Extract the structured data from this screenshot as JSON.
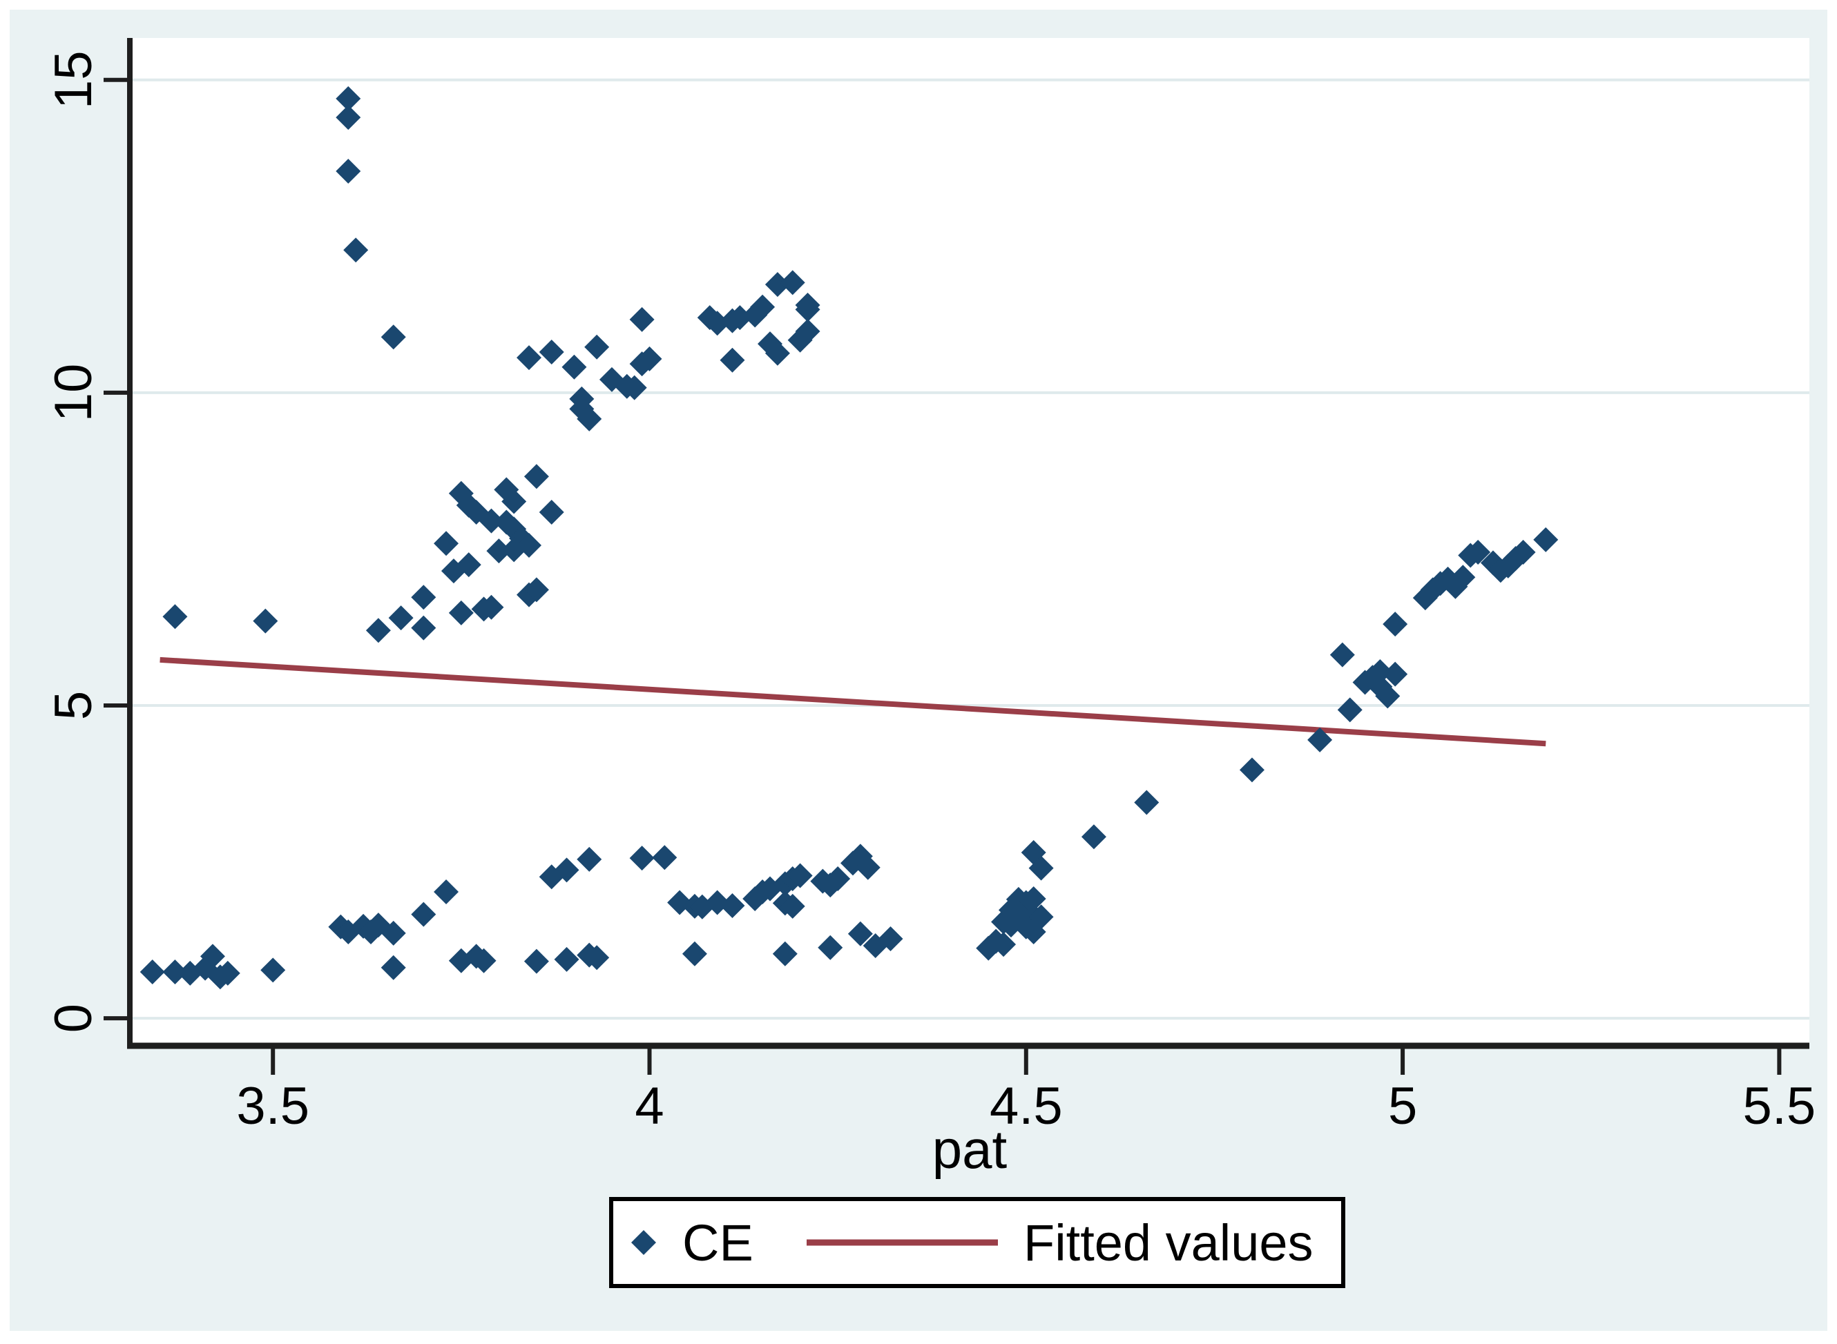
{
  "chart_data": {
    "type": "scatter",
    "title": "",
    "xlabel": "pat",
    "ylabel": "",
    "xlim": [
      3.31,
      5.54
    ],
    "ylim": [
      -0.44,
      15.67
    ],
    "x_tick_values": [
      3.5,
      4,
      4.5,
      5,
      5.5
    ],
    "x_tick_labels": [
      "3.5",
      "4",
      "4.5",
      "5",
      "5.5"
    ],
    "y_tick_values": [
      0,
      5,
      10,
      15
    ],
    "y_tick_labels": [
      "0",
      "5",
      "10",
      "15"
    ],
    "grid": "horizontal",
    "legend": {
      "position": "bottom-center",
      "entries": [
        {
          "label": "CE",
          "marker": "diamond",
          "color": "#1a476f"
        },
        {
          "label": "Fitted values",
          "marker": "line",
          "color": "#9a3e48"
        }
      ]
    },
    "series": [
      {
        "name": "CE",
        "type": "scatter",
        "marker": "diamond",
        "color": "#1a476f",
        "points": [
          [
            3.34,
            0.74
          ],
          [
            3.37,
            0.74
          ],
          [
            3.39,
            0.72
          ],
          [
            3.41,
            0.8
          ],
          [
            3.42,
            0.99
          ],
          [
            3.43,
            0.66
          ],
          [
            3.44,
            0.72
          ],
          [
            3.5,
            0.77
          ],
          [
            3.37,
            6.42
          ],
          [
            3.49,
            6.35
          ],
          [
            3.59,
            1.46
          ],
          [
            3.6,
            1.38
          ],
          [
            3.62,
            1.47
          ],
          [
            3.63,
            1.38
          ],
          [
            3.64,
            1.49
          ],
          [
            3.66,
            1.36
          ],
          [
            3.66,
            0.81
          ],
          [
            3.7,
            1.66
          ],
          [
            3.73,
            2.02
          ],
          [
            3.75,
            0.92
          ],
          [
            3.77,
            0.99
          ],
          [
            3.78,
            0.92
          ],
          [
            3.85,
            0.91
          ],
          [
            3.89,
            0.94
          ],
          [
            3.92,
            1.01
          ],
          [
            3.93,
            0.97
          ],
          [
            3.87,
            2.26
          ],
          [
            3.89,
            2.37
          ],
          [
            3.92,
            2.54
          ],
          [
            3.99,
            2.56
          ],
          [
            4.02,
            2.57
          ],
          [
            4.04,
            1.85
          ],
          [
            4.06,
            1.79
          ],
          [
            4.07,
            1.78
          ],
          [
            4.09,
            1.85
          ],
          [
            4.11,
            1.8
          ],
          [
            4.14,
            1.91
          ],
          [
            4.15,
            2.02
          ],
          [
            4.16,
            2.07
          ],
          [
            4.18,
            2.15
          ],
          [
            4.19,
            2.23
          ],
          [
            4.2,
            2.28
          ],
          [
            4.18,
            1.84
          ],
          [
            4.19,
            1.79
          ],
          [
            4.23,
            2.19
          ],
          [
            4.24,
            2.13
          ],
          [
            4.25,
            2.23
          ],
          [
            4.27,
            2.48
          ],
          [
            4.28,
            2.59
          ],
          [
            4.29,
            2.41
          ],
          [
            4.06,
            1.03
          ],
          [
            4.18,
            1.03
          ],
          [
            4.24,
            1.13
          ],
          [
            4.28,
            1.35
          ],
          [
            4.3,
            1.16
          ],
          [
            4.32,
            1.27
          ],
          [
            4.49,
            1.9
          ],
          [
            4.5,
            1.85
          ],
          [
            4.51,
            1.91
          ],
          [
            4.48,
            1.73
          ],
          [
            4.49,
            1.68
          ],
          [
            4.51,
            1.63
          ],
          [
            4.52,
            1.62
          ],
          [
            4.47,
            1.54
          ],
          [
            4.48,
            1.49
          ],
          [
            4.5,
            1.46
          ],
          [
            4.51,
            1.38
          ],
          [
            4.46,
            1.23
          ],
          [
            4.47,
            1.18
          ],
          [
            4.45,
            1.12
          ],
          [
            4.51,
            2.65
          ],
          [
            4.52,
            2.4
          ],
          [
            4.59,
            2.9
          ],
          [
            4.66,
            3.45
          ],
          [
            4.8,
            3.97
          ],
          [
            4.89,
            4.45
          ],
          [
            4.93,
            4.93
          ],
          [
            4.92,
            5.81
          ],
          [
            4.95,
            5.37
          ],
          [
            4.97,
            5.54
          ],
          [
            4.96,
            5.45
          ],
          [
            4.97,
            5.3
          ],
          [
            4.98,
            5.15
          ],
          [
            4.99,
            5.5
          ],
          [
            4.99,
            6.3
          ],
          [
            5.03,
            6.72
          ],
          [
            5.04,
            6.85
          ],
          [
            5.05,
            6.95
          ],
          [
            5.06,
            7.02
          ],
          [
            5.07,
            6.9
          ],
          [
            5.08,
            7.05
          ],
          [
            5.09,
            7.4
          ],
          [
            5.1,
            7.45
          ],
          [
            5.12,
            7.28
          ],
          [
            5.13,
            7.16
          ],
          [
            5.14,
            7.23
          ],
          [
            5.15,
            7.35
          ],
          [
            5.16,
            7.45
          ],
          [
            5.19,
            7.65
          ],
          [
            3.64,
            6.2
          ],
          [
            3.67,
            6.4
          ],
          [
            3.7,
            6.73
          ],
          [
            3.7,
            6.24
          ],
          [
            3.74,
            7.15
          ],
          [
            3.75,
            6.48
          ],
          [
            3.76,
            7.25
          ],
          [
            3.78,
            6.54
          ],
          [
            3.79,
            6.57
          ],
          [
            3.73,
            7.59
          ],
          [
            3.75,
            8.39
          ],
          [
            3.76,
            8.2
          ],
          [
            3.77,
            8.09
          ],
          [
            3.79,
            7.95
          ],
          [
            3.82,
            8.26
          ],
          [
            3.85,
            8.66
          ],
          [
            3.81,
            7.93
          ],
          [
            3.82,
            7.82
          ],
          [
            3.83,
            7.67
          ],
          [
            3.84,
            7.56
          ],
          [
            3.82,
            7.49
          ],
          [
            3.8,
            7.47
          ],
          [
            3.87,
            8.09
          ],
          [
            3.84,
            6.77
          ],
          [
            3.85,
            6.85
          ],
          [
            3.81,
            8.45
          ],
          [
            3.84,
            10.56
          ],
          [
            3.87,
            10.65
          ],
          [
            3.9,
            10.41
          ],
          [
            3.93,
            10.73
          ],
          [
            3.99,
            11.17
          ],
          [
            3.91,
            9.9
          ],
          [
            3.91,
            9.74
          ],
          [
            3.92,
            9.58
          ],
          [
            3.95,
            10.21
          ],
          [
            3.97,
            10.1
          ],
          [
            3.98,
            10.08
          ],
          [
            3.99,
            10.46
          ],
          [
            4.0,
            10.54
          ],
          [
            4.08,
            11.2
          ],
          [
            4.09,
            11.11
          ],
          [
            4.11,
            11.15
          ],
          [
            4.12,
            11.2
          ],
          [
            4.14,
            11.24
          ],
          [
            4.15,
            11.37
          ],
          [
            4.17,
            11.73
          ],
          [
            4.19,
            11.76
          ],
          [
            4.21,
            11.4
          ],
          [
            4.21,
            11.33
          ],
          [
            4.2,
            10.84
          ],
          [
            4.21,
            10.98
          ],
          [
            4.11,
            10.52
          ],
          [
            4.16,
            10.78
          ],
          [
            4.17,
            10.63
          ],
          [
            3.6,
            14.7
          ],
          [
            3.6,
            14.4
          ],
          [
            3.6,
            13.54
          ],
          [
            3.61,
            12.28
          ],
          [
            3.66,
            10.89
          ]
        ]
      },
      {
        "name": "Fitted values",
        "type": "line",
        "color": "#9a3e48",
        "points": [
          [
            3.35,
            5.73
          ],
          [
            5.19,
            4.39
          ]
        ]
      }
    ]
  },
  "style": {
    "frame_color": "#ffffff",
    "background": "#eaf2f3",
    "plot_background": "#ffffff",
    "grid_color": "#dfeaec",
    "axis_color": "#1e1e1e",
    "legend_border_color": "#000000",
    "legend_background": "#ffffff",
    "marker_color": "#1a476f",
    "fit_line_color": "#9a3e48"
  }
}
